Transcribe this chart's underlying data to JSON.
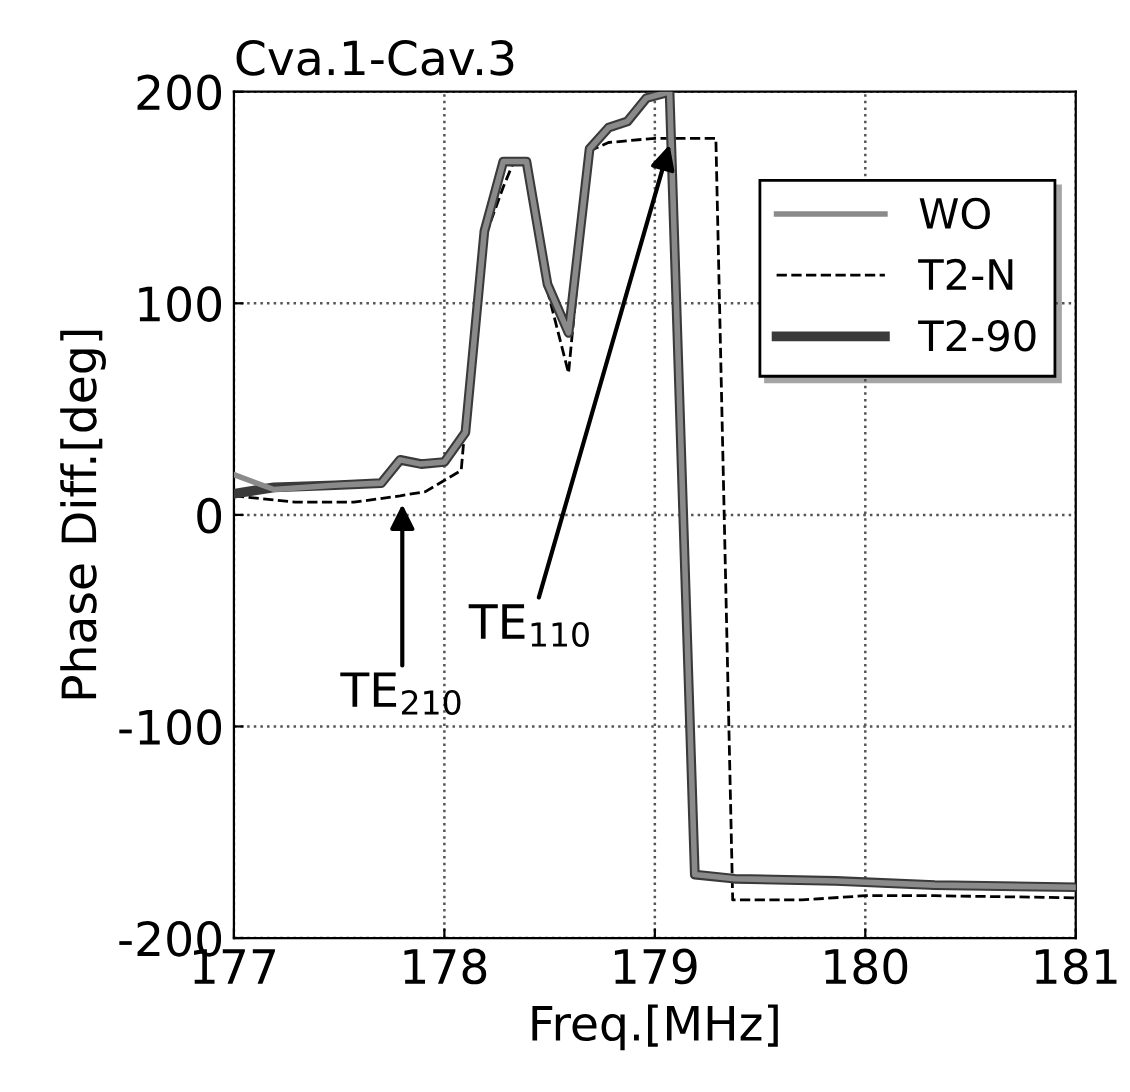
{
  "chart_data": {
    "type": "line",
    "title": "Cva.1-Cav.3",
    "xlabel": "Freq.[MHz]",
    "ylabel": "Phase Diff.[deg]",
    "xlim": [
      177,
      181
    ],
    "ylim": [
      -200,
      200
    ],
    "xticks": [
      177,
      178,
      179,
      180,
      181
    ],
    "yticks": [
      -200,
      -100,
      0,
      100,
      200
    ],
    "grid": true,
    "legend": "top right",
    "marker": "none",
    "series": [
      {
        "name": "WO",
        "color": "#8a8a8a",
        "line_style": "solid",
        "x": [
          177,
          177.19,
          177.48,
          177.7,
          177.79,
          177.89,
          178.0,
          178.1,
          178.19,
          178.28,
          178.39,
          178.49,
          178.59,
          178.69,
          178.78,
          178.87,
          178.96,
          179.07,
          179.19,
          179.38,
          179.86,
          180.33,
          181
        ],
        "values": [
          19,
          12,
          14,
          15,
          26,
          24,
          25,
          39,
          134,
          167,
          167,
          109,
          86,
          173,
          183,
          186,
          197,
          200,
          -170,
          -172,
          -173,
          -175,
          -176
        ]
      },
      {
        "name": "T2-N",
        "color": "#000000",
        "line_style": "dashed",
        "x": [
          177,
          177.29,
          177.57,
          177.79,
          177.91,
          178.08,
          178.17,
          178.28,
          178.33,
          178.39,
          178.49,
          178.59,
          178.69,
          178.78,
          179.0,
          179.29,
          179.37,
          179.7,
          180.0,
          180.33,
          181
        ],
        "values": [
          9,
          6,
          6,
          9,
          11,
          21,
          125,
          155,
          167,
          167,
          106,
          67,
          172,
          176,
          178,
          178,
          -182,
          -182,
          -180,
          -180,
          -181
        ]
      },
      {
        "name": "T2-90",
        "color": "#3a3a3a",
        "line_style": "solid",
        "x": [
          177,
          177.19,
          177.48,
          177.7,
          177.79,
          177.89,
          178.0,
          178.1,
          178.19,
          178.28,
          178.39,
          178.49,
          178.59,
          178.69,
          178.78,
          178.87,
          178.96,
          179.07,
          179.19,
          179.38,
          179.86,
          180.33,
          181
        ],
        "values": [
          10,
          13,
          14,
          15,
          26,
          24,
          25,
          39,
          134,
          167,
          167,
          109,
          86,
          173,
          183,
          186,
          197,
          200,
          -170,
          -172,
          -173,
          -175,
          -176
        ]
      }
    ],
    "annotations": [
      {
        "text": "TE$_{210}$",
        "x": 177.8,
        "y": 5
      },
      {
        "text": "TE$_{110}$",
        "x": 179.07,
        "y": 175
      }
    ]
  }
}
